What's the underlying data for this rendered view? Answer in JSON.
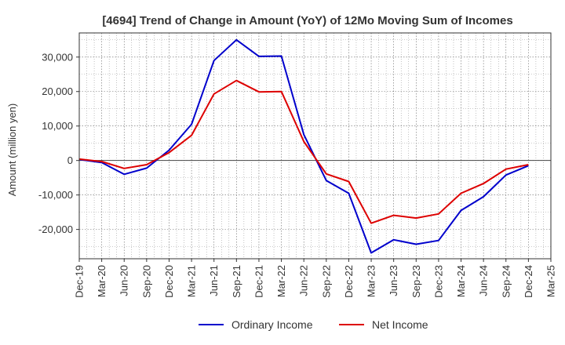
{
  "chart_data": {
    "type": "line",
    "title": "[4694]  Trend of Change in Amount (YoY) of 12Mo Moving Sum of Incomes",
    "xlabel": "",
    "ylabel": "Amount (million yen)",
    "ylim": [
      -28500,
      37000
    ],
    "yticks": [
      30000,
      20000,
      10000,
      0,
      -10000,
      -20000
    ],
    "ytick_labels": [
      "30,000",
      "20,000",
      "10,000",
      "0",
      "-10,000",
      "-20,000"
    ],
    "categories": [
      "Dec-19",
      "Mar-20",
      "Jun-20",
      "Sep-20",
      "Dec-20",
      "Mar-21",
      "Jun-21",
      "Sep-21",
      "Dec-21",
      "Mar-22",
      "Jun-22",
      "Sep-22",
      "Dec-22",
      "Mar-23",
      "Jun-23",
      "Sep-23",
      "Dec-23",
      "Mar-24",
      "Jun-24",
      "Sep-24",
      "Dec-24",
      "Mar-25"
    ],
    "grid": true,
    "legend_position": "bottom-center",
    "series": [
      {
        "name": "Ordinary Income",
        "color": "#0000cc",
        "values": [
          300,
          -600,
          -4000,
          -2200,
          3000,
          10500,
          29000,
          35000,
          30200,
          30300,
          7500,
          -5800,
          -9500,
          -26800,
          -23000,
          -24300,
          -23200,
          -14500,
          -10500,
          -4200,
          -1500,
          null
        ]
      },
      {
        "name": "Net Income",
        "color": "#dd0000",
        "values": [
          400,
          -300,
          -2300,
          -1200,
          2300,
          7300,
          19300,
          23200,
          19900,
          20000,
          5500,
          -3900,
          -6100,
          -18200,
          -15900,
          -16700,
          -15500,
          -9500,
          -6700,
          -2500,
          -1200,
          null
        ]
      }
    ]
  }
}
